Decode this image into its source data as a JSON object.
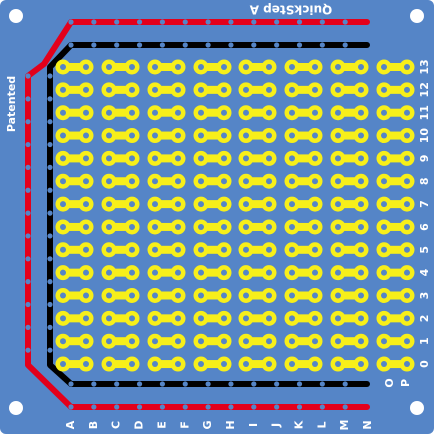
{
  "board": {
    "title": "QuickStep A",
    "side_text": "Patented",
    "column_labels": [
      "A",
      "B",
      "C",
      "D",
      "E",
      "F",
      "G",
      "H",
      "I",
      "J",
      "K",
      "L",
      "M",
      "N"
    ],
    "rail_labels": [
      "O",
      "P"
    ],
    "row_labels": [
      "13",
      "12",
      "11",
      "10",
      "9",
      "8",
      "7",
      "6",
      "5",
      "4",
      "3",
      "2",
      "1",
      "0"
    ],
    "colors": {
      "board": "#5585c7",
      "board_edge": "#3f6fb0",
      "positive_rail": "#e3001b",
      "ground_rail": "#000000",
      "pad": "#f7ef1a",
      "hole": "#5585c7",
      "mount_hole": "#ffffff"
    }
  }
}
